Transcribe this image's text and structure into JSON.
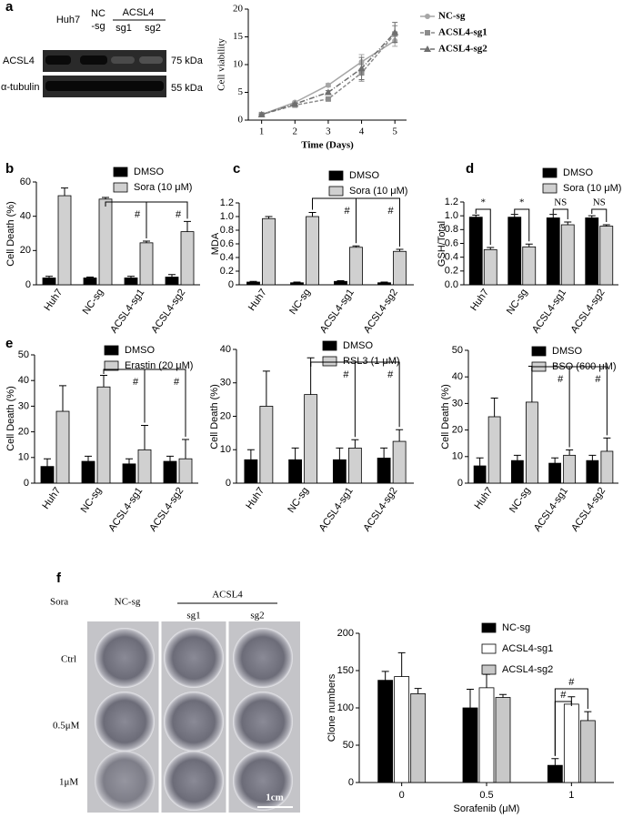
{
  "panel_labels": [
    "a",
    "b",
    "c",
    "d",
    "e",
    "f"
  ],
  "blot": {
    "header": [
      "Huh7",
      "NC",
      "-sg",
      "ACSL4",
      "sg1",
      "sg2"
    ],
    "rows": [
      "ACSL4",
      "α-tubulin"
    ],
    "sizes": [
      "75 kDa",
      "55 kDa"
    ]
  },
  "colony": {
    "header": [
      "Sora",
      "NC-sg",
      "ACSL4",
      "sg1",
      "sg2"
    ],
    "rows": [
      "Ctrl",
      "0.5μM",
      "1μM"
    ],
    "scale_bar": "1cm"
  },
  "chart_data": [
    {
      "type": "line",
      "x_label": "Time (Days)",
      "y_label": "Cell viability",
      "x": [
        1,
        2,
        3,
        4,
        5
      ],
      "xlim": [
        0.6,
        5.35
      ],
      "xticks": [
        1,
        2,
        3,
        4,
        5
      ],
      "ylim": [
        0,
        20
      ],
      "yticks": [
        0,
        5,
        10,
        15,
        20
      ],
      "series": [
        {
          "name": "NC-sg",
          "color": "#a6a6a6",
          "marker": "circle",
          "dash": "solid",
          "values": [
            1,
            3.2,
            6.3,
            10.5,
            14.3
          ],
          "errors": [
            0.1,
            0.2,
            0.3,
            1.3,
            1.0
          ]
        },
        {
          "name": "ACSL4-sg1",
          "color": "#8c8c8c",
          "marker": "square",
          "dash": "dashed",
          "values": [
            1,
            2.7,
            3.8,
            8.5,
            15.5
          ],
          "errors": [
            0.1,
            0.2,
            0.3,
            1.5,
            1.5
          ]
        },
        {
          "name": "ACSL4-sg2",
          "color": "#6e6e6e",
          "marker": "triangle",
          "dash": "dashdot",
          "values": [
            1,
            2.9,
            5.0,
            9.3,
            15.8
          ],
          "errors": [
            0.1,
            0.2,
            0.3,
            2.0,
            1.8
          ]
        }
      ]
    },
    {
      "type": "bar",
      "y_label": "Cell Death (%)",
      "categories": [
        "Huh7",
        "NC-sg",
        "ACSL4-sg1",
        "ACSL4-sg2"
      ],
      "ylim": [
        0,
        60
      ],
      "yticks": [
        0,
        20,
        40,
        60
      ],
      "series": [
        {
          "name": "DMSO",
          "color": "#000000",
          "values": [
            4,
            4,
            4,
            4.5
          ],
          "errors": [
            1,
            0.5,
            1,
            1.5
          ]
        },
        {
          "name": "Sora (10 μM)",
          "color": "#d0d0d0",
          "values": [
            52,
            50,
            24.5,
            31
          ],
          "errors": [
            4.5,
            1,
            1,
            6
          ]
        }
      ],
      "annotations": [
        "#",
        "#"
      ]
    },
    {
      "type": "bar",
      "y_label": "MDA",
      "categories": [
        "Huh7",
        "NC-sg",
        "ACSL4-sg1",
        "ACSL4-sg2"
      ],
      "ylim": [
        0,
        1.2
      ],
      "yticks": [
        0,
        0.2,
        0.4,
        0.6,
        0.8,
        {
          "value": 1,
          "label": "1.0"
        },
        1.2
      ],
      "series": [
        {
          "name": "DMSO",
          "color": "#000000",
          "values": [
            0.04,
            0.03,
            0.05,
            0.03
          ],
          "errors": [
            0.01,
            0.01,
            0.01,
            0.01
          ]
        },
        {
          "name": "Sora (10 μM)",
          "color": "#d0d0d0",
          "values": [
            0.97,
            1.0,
            0.55,
            0.49
          ],
          "errors": [
            0.03,
            0.06,
            0.02,
            0.03
          ]
        }
      ],
      "annotations": [
        "#",
        "#"
      ]
    },
    {
      "type": "bar",
      "y_label": "GSH/Total",
      "categories": [
        "Huh7",
        "NC-sg",
        "ACSL4-sg1",
        "ACSL4-sg2"
      ],
      "ylim": [
        0,
        1.2
      ],
      "yticks": [
        {
          "value": 0,
          "label": "0.0"
        },
        0.2,
        0.4,
        0.6,
        0.8,
        {
          "value": 1,
          "label": "1.0"
        },
        1.2
      ],
      "series": [
        {
          "name": "DMSO",
          "color": "#000000",
          "values": [
            0.98,
            0.98,
            0.97,
            0.97
          ],
          "errors": [
            0.03,
            0.04,
            0.05,
            0.03
          ]
        },
        {
          "name": "Sora (10 μM)",
          "color": "#d0d0d0",
          "values": [
            0.51,
            0.55,
            0.87,
            0.85
          ],
          "errors": [
            0.03,
            0.04,
            0.04,
            0.02
          ]
        }
      ],
      "annotations": [
        "*",
        "*",
        "NS",
        "NS"
      ]
    },
    {
      "type": "bar",
      "y_label": "Cell Death (%)",
      "categories": [
        "Huh7",
        "NC-sg",
        "ACSL4-sg1",
        "ACSL4-sg2"
      ],
      "ylim": [
        0,
        50
      ],
      "yticks": [
        0,
        10,
        20,
        30,
        40,
        50
      ],
      "series": [
        {
          "name": "DMSO",
          "color": "#000000",
          "values": [
            6.5,
            8.5,
            7.5,
            8.5
          ],
          "errors": [
            3,
            2,
            2,
            2
          ]
        },
        {
          "name": "Erastin (20 μM)",
          "color": "#d0d0d0",
          "values": [
            28,
            37.5,
            13,
            9.5
          ],
          "errors": [
            10,
            4.5,
            9.5,
            7.5
          ]
        }
      ],
      "annotations": [
        "#",
        "#"
      ]
    },
    {
      "type": "bar",
      "y_label": "Cell Death (%)",
      "categories": [
        "Huh7",
        "NC-sg",
        "ACSL4-sg1",
        "ACSL4-sg2"
      ],
      "ylim": [
        0,
        40
      ],
      "yticks": [
        0,
        10,
        20,
        30,
        40
      ],
      "series": [
        {
          "name": "DMSO",
          "color": "#000000",
          "values": [
            7,
            7,
            7,
            7.5
          ],
          "errors": [
            3,
            3.5,
            3.5,
            3
          ]
        },
        {
          "name": "RSL3 (1 μM)",
          "color": "#d0d0d0",
          "values": [
            23,
            26.5,
            10.5,
            12.5
          ],
          "errors": [
            10.5,
            11,
            2.5,
            3.5
          ]
        }
      ],
      "annotations": [
        "#",
        "#"
      ]
    },
    {
      "type": "bar",
      "y_label": "Cell Death (%)",
      "categories": [
        "Huh7",
        "NC-sg",
        "ACSL4-sg1",
        "ACSL4-sg2"
      ],
      "ylim": [
        0,
        50
      ],
      "yticks": [
        0,
        10,
        20,
        30,
        40,
        50
      ],
      "series": [
        {
          "name": "DMSO",
          "color": "#000000",
          "values": [
            6.5,
            8.5,
            7.5,
            8.5
          ],
          "errors": [
            3,
            2,
            2,
            2
          ]
        },
        {
          "name": "BSO (600 μM)",
          "color": "#d0d0d0",
          "values": [
            25,
            30.5,
            10.5,
            12
          ],
          "errors": [
            7,
            13.5,
            2,
            5
          ]
        }
      ],
      "annotations": [
        "#",
        "#"
      ]
    },
    {
      "type": "bar",
      "x_label": "Sorafenib (μM)",
      "y_label": "Clone numbers",
      "categories": [
        "0",
        "0.5",
        "1"
      ],
      "ylim": [
        0,
        200
      ],
      "yticks": [
        0,
        50,
        100,
        150,
        200
      ],
      "series": [
        {
          "name": "NC-sg",
          "color": "#000000",
          "values": [
            137,
            100,
            23
          ],
          "errors": [
            12,
            25,
            9
          ]
        },
        {
          "name": "ACSL4-sg1",
          "color": "#ffffff",
          "values": [
            142,
            127,
            105
          ],
          "errors": [
            32,
            18,
            10
          ]
        },
        {
          "name": "ACSL4-sg2",
          "color": "#c8c8c8",
          "values": [
            119,
            114,
            83
          ],
          "errors": [
            7,
            4,
            12
          ]
        }
      ],
      "annotations": [
        "#",
        "#"
      ]
    }
  ]
}
